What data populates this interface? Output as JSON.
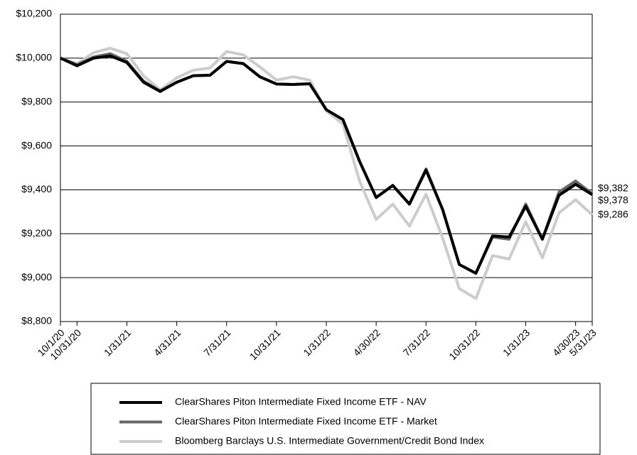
{
  "chart_data": {
    "type": "line",
    "categories": [
      "10/1/20",
      "10/31/20",
      null,
      null,
      "1/31/21",
      null,
      null,
      "4/31/21",
      null,
      null,
      "7/31/21",
      null,
      null,
      "10/31/21",
      null,
      null,
      "1/31/22",
      null,
      null,
      "4/30/22",
      null,
      null,
      "7/31/22",
      null,
      null,
      "10/31/22",
      null,
      null,
      "1/31/23",
      null,
      null,
      "4/30/23",
      "5/31/23"
    ],
    "series": [
      {
        "name": "Bloomberg Barclays U.S. Intermediate Government/Credit Bond Index",
        "color": "#cccccc",
        "values": [
          10000,
          9975,
          10025,
          10045,
          10020,
          9920,
          9855,
          9910,
          9945,
          9955,
          10030,
          10015,
          9960,
          9900,
          9915,
          9900,
          9760,
          9700,
          9440,
          9265,
          9335,
          9235,
          9380,
          9180,
          8950,
          8905,
          9100,
          9085,
          9255,
          9090,
          9295,
          9355,
          9286
        ],
        "value_labels": [
          null,
          null,
          null,
          null,
          null,
          null,
          null,
          null,
          null,
          null,
          null,
          null,
          null,
          null,
          null,
          null,
          null,
          null,
          null,
          null,
          null,
          null,
          null,
          null,
          null,
          null,
          null,
          null,
          null,
          null,
          null,
          null,
          "$9,286"
        ]
      },
      {
        "name": "ClearShares Piton Intermediate Fixed Income ETF - Market",
        "color": "#666666",
        "values": [
          10000,
          9970,
          10005,
          10020,
          9985,
          9895,
          9850,
          9890,
          9920,
          9922,
          9985,
          9975,
          9915,
          9882,
          9880,
          9883,
          9765,
          9720,
          9530,
          9365,
          9420,
          9335,
          9495,
          9310,
          9060,
          9020,
          9185,
          9175,
          9335,
          9175,
          9390,
          9440,
          9382
        ],
        "value_labels": [
          null,
          null,
          null,
          null,
          null,
          null,
          null,
          null,
          null,
          null,
          null,
          null,
          null,
          null,
          null,
          null,
          null,
          null,
          null,
          null,
          null,
          null,
          null,
          null,
          null,
          null,
          null,
          null,
          null,
          null,
          null,
          null,
          "$9,382"
        ]
      },
      {
        "name": "ClearShares Piton Intermediate Fixed Income ETF - NAV",
        "color": "#000000",
        "values": [
          10000,
          9965,
          10000,
          10010,
          9980,
          9890,
          9848,
          9890,
          9920,
          9922,
          9985,
          9975,
          9915,
          9882,
          9880,
          9883,
          9765,
          9720,
          9530,
          9365,
          9420,
          9335,
          9490,
          9310,
          9060,
          9020,
          9190,
          9185,
          9325,
          9175,
          9375,
          9425,
          9378
        ],
        "value_labels": [
          null,
          null,
          null,
          null,
          null,
          null,
          null,
          null,
          null,
          null,
          null,
          null,
          null,
          null,
          null,
          null,
          null,
          null,
          null,
          null,
          null,
          null,
          null,
          null,
          null,
          null,
          null,
          null,
          null,
          null,
          null,
          null,
          "$9,378"
        ]
      }
    ],
    "ylim": [
      8800,
      10200
    ],
    "yticks": [
      {
        "value": 8800,
        "label": "$8,800"
      },
      {
        "value": 9000,
        "label": "$9,000"
      },
      {
        "value": 9200,
        "label": "$9,200"
      },
      {
        "value": 9400,
        "label": "$9,400"
      },
      {
        "value": 9600,
        "label": "$9,600"
      },
      {
        "value": 9800,
        "label": "$9,800"
      },
      {
        "value": 10000,
        "label": "$10,000"
      },
      {
        "value": 10200,
        "label": "$10,200"
      }
    ],
    "grid": true,
    "legend": "bottom"
  }
}
